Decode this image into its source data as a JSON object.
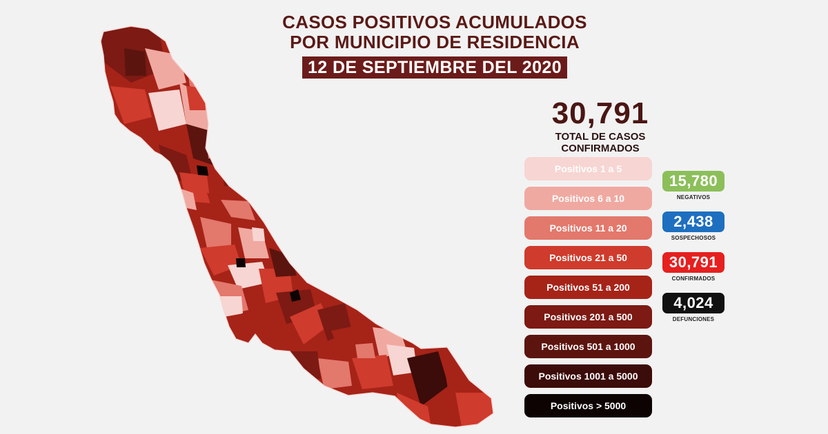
{
  "header": {
    "title": "CASOS POSITIVOS ACUMULADOS\nPOR MUNICIPIO DE RESIDENCIA",
    "date": "12 DE SEPTIEMBRE DEL 2020"
  },
  "total": {
    "value": "30,791",
    "caption": "TOTAL DE CASOS\nCONFIRMADOS"
  },
  "legend": {
    "items": [
      {
        "label": "Positivos 1 a 5",
        "color": "#f7d5d2",
        "text_color": "#ffffff"
      },
      {
        "label": "Positivos 6 a 10",
        "color": "#efa9a1"
      },
      {
        "label": "Positivos 11 a 20",
        "color": "#e3786c"
      },
      {
        "label": "Positivos 21 a 50",
        "color": "#cf3b2c"
      },
      {
        "label": "Positivos 51 a 200",
        "color": "#a62318"
      },
      {
        "label": "Positivos 201 a 500",
        "color": "#7c1a13"
      },
      {
        "label": "Positivos 501 a 1000",
        "color": "#5c140f"
      },
      {
        "label": "Positivos 1001 a 5000",
        "color": "#3b0c09"
      },
      {
        "label": "Positivos > 5000",
        "color": "#0d0303"
      }
    ]
  },
  "stats": [
    {
      "value": "15,780",
      "caption": "NEGATIVOS",
      "color": "#8cbf5a"
    },
    {
      "value": "2,438",
      "caption": "SOSPECHOSOS",
      "color": "#1e6fc0"
    },
    {
      "value": "30,791",
      "caption": "CONFIRMADOS",
      "color": "#e5201f"
    },
    {
      "value": "4,024",
      "caption": "DEFUNCIONES",
      "color": "#111111"
    }
  ]
}
